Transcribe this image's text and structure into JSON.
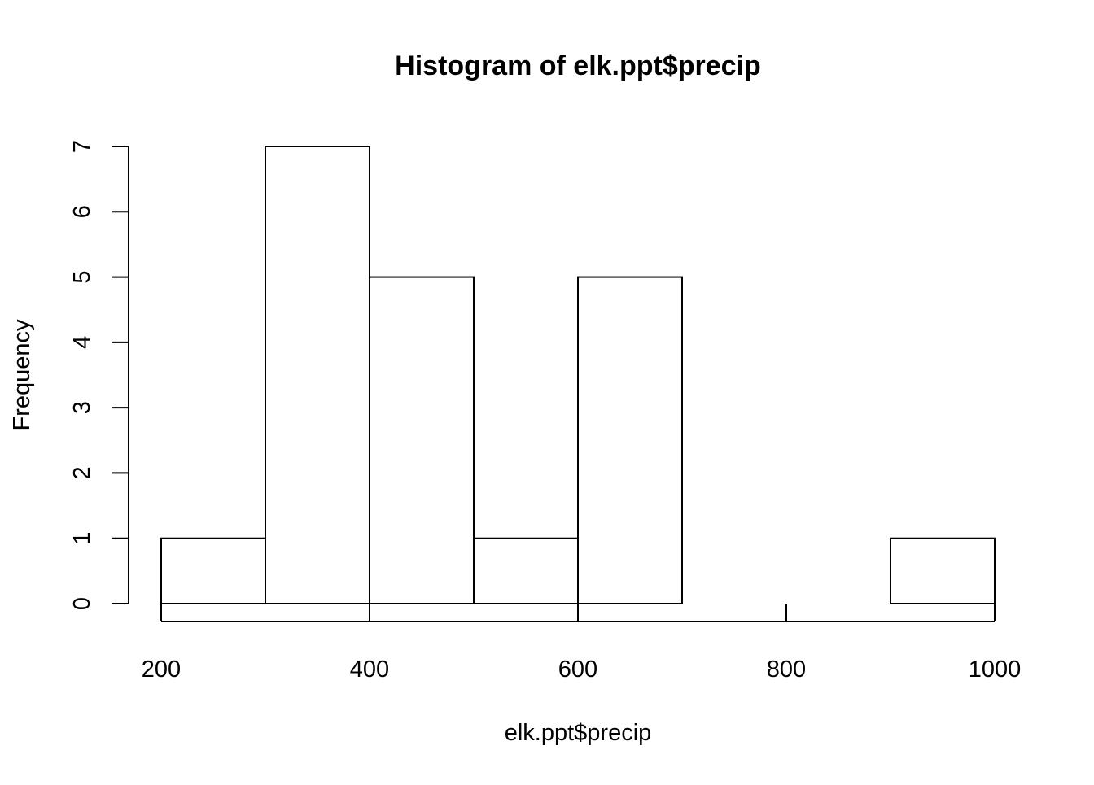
{
  "chart_data": {
    "type": "bar",
    "title": "Histogram of elk.ppt$precip",
    "xlabel": "elk.ppt$precip",
    "ylabel": "Frequency",
    "bins": [
      {
        "from": 200,
        "to": 300,
        "count": 1
      },
      {
        "from": 300,
        "to": 400,
        "count": 7
      },
      {
        "from": 400,
        "to": 500,
        "count": 5
      },
      {
        "from": 500,
        "to": 600,
        "count": 1
      },
      {
        "from": 600,
        "to": 700,
        "count": 5
      },
      {
        "from": 700,
        "to": 800,
        "count": 0
      },
      {
        "from": 800,
        "to": 900,
        "count": 0
      },
      {
        "from": 900,
        "to": 1000,
        "count": 1
      }
    ],
    "xlim": [
      200,
      1000
    ],
    "ylim": [
      0,
      7
    ],
    "x_ticks": [
      "200",
      "400",
      "600",
      "800",
      "1000"
    ],
    "y_ticks": [
      "0",
      "1",
      "2",
      "3",
      "4",
      "5",
      "6",
      "7"
    ],
    "grid": false,
    "colors": {
      "bar_fill": "#ffffff",
      "bar_stroke": "#000000"
    }
  }
}
